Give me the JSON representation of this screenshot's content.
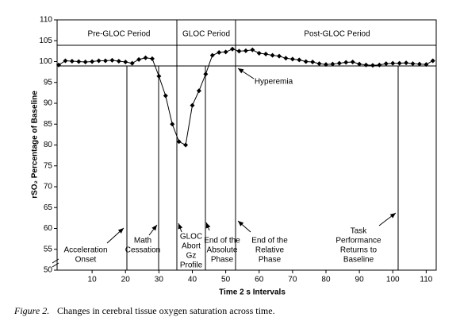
{
  "chart_data": {
    "type": "line",
    "y_label": "rSO₂ Percentage of Baseline",
    "x_label": "Time 2 s Intervals",
    "caption_label": "Figure 2.",
    "caption": "Changes in cerebral tissue oxygen saturation across time.",
    "x": [
      0,
      2,
      4,
      6,
      8,
      10,
      12,
      14,
      16,
      18,
      20,
      22,
      24,
      26,
      28,
      30,
      32,
      34,
      36,
      38,
      40,
      42,
      44,
      46,
      48,
      50,
      52,
      54,
      56,
      58,
      60,
      62,
      64,
      66,
      68,
      70,
      72,
      74,
      76,
      78,
      80,
      82,
      84,
      86,
      88,
      90,
      92,
      94,
      96,
      98,
      100,
      102,
      104,
      106,
      108,
      110,
      112
    ],
    "series": [
      {
        "color": "#000000",
        "values": [
          99.2,
          100.2,
          100.1,
          100,
          99.9,
          100,
          100.2,
          100.2,
          100.3,
          100.1,
          99.9,
          99.6,
          100.5,
          100.9,
          100.7,
          96.5,
          91.8,
          85,
          80.8,
          80,
          89.5,
          93,
          97,
          101.5,
          102.2,
          102.3,
          103,
          102.5,
          102.6,
          102.8,
          102,
          101.8,
          101.5,
          101.3,
          100.8,
          100.6,
          100.4,
          100,
          99.9,
          99.5,
          99.3,
          99.4,
          99.6,
          99.8,
          99.9,
          99.4,
          99.2,
          99.1,
          99.2,
          99.5,
          99.6,
          99.6,
          99.7,
          99.5,
          99.4,
          99.3,
          100.2
        ]
      }
    ],
    "xlim": [
      0,
      113
    ],
    "ylim": [
      50,
      110
    ],
    "xticks": [
      10,
      20,
      30,
      40,
      50,
      60,
      70,
      80,
      90,
      100,
      110
    ],
    "yticks": [
      50,
      55,
      60,
      65,
      70,
      75,
      80,
      85,
      90,
      95,
      100,
      105,
      110
    ],
    "periods": [
      "Pre-GLOC Period",
      "GLOC Period",
      "Post-GLOC Period"
    ],
    "hyperemia": "Hyperemia",
    "annotations": [
      {
        "lines": [
          "Acceleration",
          "Onset"
        ]
      },
      {
        "lines": [
          "Math",
          "Cessation"
        ]
      },
      {
        "lines": [
          "GLOC",
          "Abort",
          "Gz",
          "Profile"
        ]
      },
      {
        "lines": [
          "End of the",
          "Absolute",
          "Phase"
        ]
      },
      {
        "lines": [
          "End of the",
          "Relative",
          "Phase"
        ]
      },
      {
        "lines": [
          "Task",
          "Performance",
          "Returns to",
          "Baseline"
        ]
      }
    ]
  }
}
